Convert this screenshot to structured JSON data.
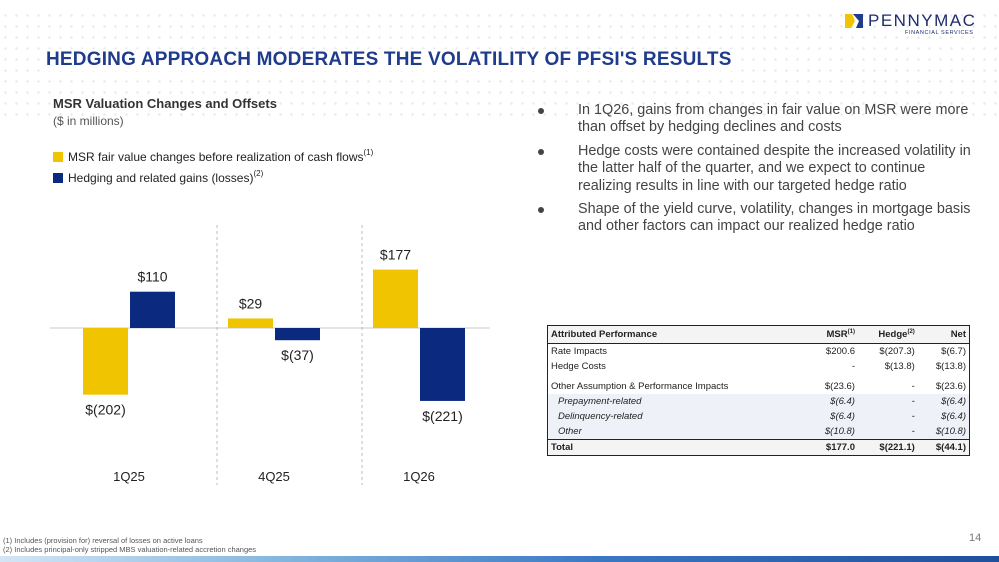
{
  "brand": {
    "name": "PENNYMAC",
    "sub": "FINANCIAL SERVICES",
    "colors": {
      "navy": "#1f2d6d",
      "accent_blue": "#1f3b8c",
      "gold": "#f0c400",
      "bar_navy": "#0b2a7f"
    }
  },
  "slide": {
    "title": "HEDGING APPROACH MODERATES THE VOLATILITY OF PFSI'S RESULTS",
    "page_number": "14"
  },
  "chart_header": {
    "title": "MSR Valuation Changes and Offsets",
    "subtitle": "($ in millions)"
  },
  "legend": {
    "item1": "MSR fair value changes before realization of cash flows",
    "item1_sup": "(1)",
    "item2": "Hedging and related gains (losses)",
    "item2_sup": "(2)"
  },
  "chart_data": {
    "type": "bar",
    "categories": [
      "1Q25",
      "4Q25",
      "1Q26"
    ],
    "series": [
      {
        "name": "MSR fair value changes before realization of cash flows",
        "color": "#f0c400",
        "values": [
          -202,
          29,
          177
        ],
        "labels": [
          "$(202)",
          "$29",
          "$177"
        ]
      },
      {
        "name": "Hedging and related gains (losses)",
        "color": "#0b2a7f",
        "values": [
          110,
          -37,
          -221
        ],
        "labels": [
          "$110",
          "$(37)",
          "$(221)"
        ]
      }
    ],
    "ylim": [
      -240,
      200
    ],
    "grid": false
  },
  "bullets": [
    "In 1Q26, gains from changes in fair value on MSR were more than offset by hedging declines and costs",
    "Hedge costs were contained despite the increased volatility in the latter half of the quarter, and we expect to continue realizing results in line with our targeted hedge ratio",
    "Shape of the yield curve, volatility, changes in mortgage basis and other factors can impact our realized hedge ratio"
  ],
  "table": {
    "headers": {
      "label": "Attributed Performance",
      "msr": "MSR",
      "msr_sup": "(1)",
      "hedge": "Hedge",
      "hedge_sup": "(2)",
      "net": "Net"
    },
    "rows": [
      {
        "label": "Rate Impacts",
        "msr": "$200.6",
        "hedge": "$(207.3)",
        "net": "$(6.7)"
      },
      {
        "label": "Hedge Costs",
        "msr": "-",
        "hedge": "$(13.8)",
        "net": "$(13.8)"
      },
      {
        "label": "Other Assumption & Performance Impacts",
        "msr": "$(23.6)",
        "hedge": "-",
        "net": "$(23.6)"
      },
      {
        "label": "Prepayment-related",
        "msr": "$(6.4)",
        "hedge": "-",
        "net": "$(6.4)"
      },
      {
        "label": "Delinquency-related",
        "msr": "$(6.4)",
        "hedge": "-",
        "net": "$(6.4)"
      },
      {
        "label": "Other",
        "msr": "$(10.8)",
        "hedge": "-",
        "net": "$(10.8)"
      }
    ],
    "total": {
      "label": "Total",
      "msr": "$177.0",
      "hedge": "$(221.1)",
      "net": "$(44.1)"
    }
  },
  "footnotes": [
    "(1) Includes (provision for) reversal of losses on active loans",
    "(2) Includes principal-only stripped MBS valuation-related accretion changes"
  ]
}
